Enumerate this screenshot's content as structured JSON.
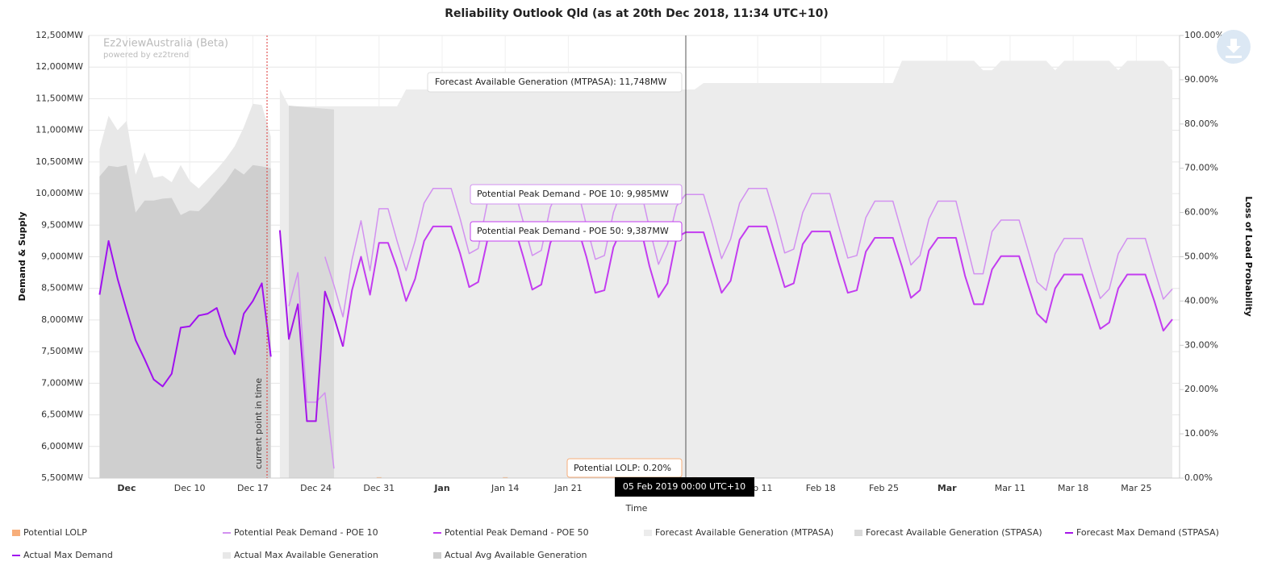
{
  "chart_data": {
    "type": "combo",
    "title": "Reliability Outlook Qld (as at 20th Dec 2018, 11:34 UTC+10)",
    "y_label": "Demand & Supply",
    "y2_label": "Loss of Load Probability",
    "x_label": "Time",
    "watermark": {
      "title": "Ez2viewAustralia (Beta)",
      "subtitle": "powered by ez2trend"
    },
    "annotations": [
      "current point in time"
    ],
    "tooltips": [
      "Forecast Available Generation (MTPASA): 11,748MW",
      "Potential Peak Demand - POE 10: 9,985MW",
      "Potential Peak Demand - POE 50: 9,387MW",
      "Potential LOLP: 0.20%",
      "05 Feb 2019 00:00 UTC+10"
    ],
    "grid": true,
    "legend_position": "bottom",
    "xlim": [
      -2.2,
      118.8
    ],
    "xticks": [
      {
        "value": 2,
        "label": "Dec"
      },
      {
        "value": 9,
        "label": "Dec 10"
      },
      {
        "value": 16,
        "label": "Dec 17"
      },
      {
        "value": 23,
        "label": "Dec 24"
      },
      {
        "value": 30,
        "label": "Dec 31"
      },
      {
        "value": 37,
        "label": "Jan"
      },
      {
        "value": 44,
        "label": "Jan 14"
      },
      {
        "value": 51,
        "label": "Jan 21"
      },
      {
        "value": 72,
        "label": "Feb 11"
      },
      {
        "value": 79,
        "label": "Feb 18"
      },
      {
        "value": 86,
        "label": "Feb 25"
      },
      {
        "value": 93,
        "label": "Mar"
      },
      {
        "value": 100,
        "label": "Mar 11"
      },
      {
        "value": 107,
        "label": "Mar 18"
      },
      {
        "value": 114,
        "label": "Mar 25"
      }
    ],
    "ylim": [
      5500,
      12500
    ],
    "yticks": [
      {
        "value": 5500,
        "label": "5,500MW"
      },
      {
        "value": 6000,
        "label": "6,000MW"
      },
      {
        "value": 6500,
        "label": "6,500MW"
      },
      {
        "value": 7000,
        "label": "7,000MW"
      },
      {
        "value": 7500,
        "label": "7,500MW"
      },
      {
        "value": 8000,
        "label": "8,000MW"
      },
      {
        "value": 8500,
        "label": "8,500MW"
      },
      {
        "value": 9000,
        "label": "9,000MW"
      },
      {
        "value": 9500,
        "label": "9,500MW"
      },
      {
        "value": 10000,
        "label": "10,000MW"
      },
      {
        "value": 10500,
        "label": "10,500MW"
      },
      {
        "value": 11000,
        "label": "11,000MW"
      },
      {
        "value": 11500,
        "label": "11,500MW"
      },
      {
        "value": 12000,
        "label": "12,000MW"
      },
      {
        "value": 12500,
        "label": "12,500MW"
      }
    ],
    "y2lim": [
      0,
      100
    ],
    "y2ticks": [
      {
        "value": 0,
        "label": "0.00%"
      },
      {
        "value": 10,
        "label": "10.00%"
      },
      {
        "value": 20,
        "label": "20.00%"
      },
      {
        "value": 30,
        "label": "30.00%"
      },
      {
        "value": 40,
        "label": "40.00%"
      },
      {
        "value": 50,
        "label": "50.00%"
      },
      {
        "value": 60,
        "label": "60.00%"
      },
      {
        "value": 70,
        "label": "70.00%"
      },
      {
        "value": 80,
        "label": "80.00%"
      },
      {
        "value": 90,
        "label": "90.00%"
      },
      {
        "value": 100,
        "label": "100.00%"
      }
    ],
    "series": [
      {
        "name": "Potential LOLP",
        "type": "column",
        "axis": "y2",
        "color": "#f7ae7a",
        "x": [
          30,
          44,
          65
        ],
        "values": [
          0.2,
          0.2,
          0.2
        ]
      },
      {
        "name": "Potential Peak Demand - POE 10",
        "type": "line",
        "color": "#d291f0",
        "x": [
          20,
          21,
          22,
          23,
          24,
          25,
          null,
          24,
          25,
          26,
          27,
          28,
          29,
          30,
          31,
          32,
          33,
          34,
          35,
          36,
          37,
          38,
          39,
          40,
          41,
          42,
          43,
          44,
          45,
          46,
          47,
          48,
          49,
          50,
          51,
          52,
          53,
          54,
          55,
          56,
          57,
          58,
          59,
          60,
          61,
          62,
          63,
          64,
          65,
          66,
          67,
          68,
          69,
          70,
          71,
          72,
          73,
          74,
          75,
          76,
          77,
          78,
          79,
          80,
          81,
          82,
          83,
          84,
          85,
          86,
          87,
          88,
          89,
          90,
          91,
          92,
          93,
          94,
          95,
          96,
          97,
          98,
          99,
          100,
          101,
          102,
          103,
          104,
          105,
          106,
          107,
          108,
          109,
          110,
          111,
          112,
          113,
          114,
          115,
          116,
          117,
          118
        ],
        "values": [
          8220,
          8750,
          6700,
          6700,
          6850,
          5650,
          null,
          9000,
          8550,
          8050,
          8950,
          9570,
          8780,
          9760,
          9760,
          9250,
          8780,
          9250,
          9850,
          10080,
          10080,
          10080,
          9600,
          9050,
          9130,
          9850,
          10080,
          10080,
          10080,
          9550,
          9020,
          9100,
          9780,
          10080,
          10080,
          10080,
          9500,
          8960,
          9020,
          9700,
          10080,
          10080,
          10080,
          9450,
          8880,
          9200,
          9800,
          9985,
          9985,
          9985,
          9500,
          8970,
          9280,
          9850,
          10080,
          10080,
          10080,
          9600,
          9060,
          9120,
          9700,
          10000,
          10000,
          10000,
          9480,
          8980,
          9020,
          9620,
          9880,
          9880,
          9880,
          9380,
          8870,
          9020,
          9600,
          9880,
          9880,
          9880,
          9300,
          8730,
          8730,
          9400,
          9580,
          9580,
          9580,
          9100,
          8600,
          8470,
          9050,
          9290,
          9290,
          9290,
          8800,
          8340,
          8490,
          9050,
          9290,
          9290,
          9290,
          8800,
          8330,
          8490
        ]
      },
      {
        "name": "Potential Peak Demand - POE 50",
        "type": "line",
        "color": "#c33cf0",
        "x": [
          26,
          27,
          28,
          29,
          30,
          31,
          32,
          33,
          34,
          35,
          36,
          37,
          38,
          39,
          40,
          41,
          42,
          43,
          44,
          45,
          46,
          47,
          48,
          49,
          50,
          51,
          52,
          53,
          54,
          55,
          56,
          57,
          58,
          59,
          60,
          61,
          62,
          63,
          64,
          65,
          66,
          67,
          68,
          69,
          70,
          71,
          72,
          73,
          74,
          75,
          76,
          77,
          78,
          79,
          80,
          81,
          82,
          83,
          84,
          85,
          86,
          87,
          88,
          89,
          90,
          91,
          92,
          93,
          94,
          95,
          96,
          97,
          98,
          99,
          100,
          101,
          102,
          103,
          104,
          105,
          106,
          107,
          108,
          109,
          110,
          111,
          112,
          113,
          114,
          115,
          116,
          117,
          118
        ],
        "values": [
          7580,
          8470,
          9000,
          8400,
          9220,
          9220,
          8820,
          8300,
          8650,
          9250,
          9480,
          9480,
          9480,
          9050,
          8520,
          8600,
          9250,
          9480,
          9480,
          9480,
          9000,
          8480,
          8560,
          9220,
          9480,
          9480,
          9480,
          9000,
          8430,
          8470,
          9150,
          9470,
          9470,
          9470,
          8850,
          8360,
          8580,
          9300,
          9387,
          9387,
          9387,
          8900,
          8430,
          8620,
          9270,
          9480,
          9480,
          9480,
          9000,
          8520,
          8580,
          9200,
          9400,
          9400,
          9400,
          8900,
          8430,
          8470,
          9080,
          9300,
          9300,
          9300,
          8850,
          8350,
          8470,
          9100,
          9300,
          9300,
          9300,
          8700,
          8250,
          8250,
          8800,
          9010,
          9010,
          9010,
          8550,
          8100,
          7960,
          8500,
          8720,
          8720,
          8720,
          8300,
          7860,
          7960,
          8500,
          8720,
          8720,
          8720,
          8300,
          7830,
          8010
        ]
      },
      {
        "name": "Forecast Available Generation (MTPASA)",
        "type": "area",
        "color": "#ececec",
        "x": [
          19,
          20,
          32,
          33,
          65,
          66,
          87,
          88,
          96,
          97,
          98,
          99,
          104,
          105,
          106,
          111,
          112,
          113,
          117,
          118
        ],
        "values": [
          11650,
          11380,
          11380,
          11645,
          11645,
          11748,
          11748,
          12100,
          12100,
          11950,
          11950,
          12100,
          12100,
          11950,
          12100,
          12100,
          11950,
          12100,
          12100,
          11950
        ]
      },
      {
        "name": "Forecast Available Generation (STPASA)",
        "type": "area",
        "color": "#d9d9d9",
        "x": [
          20,
          25
        ],
        "values": [
          11390,
          11330
        ]
      },
      {
        "name": "Forecast Max Demand (STPASA)",
        "type": "line",
        "color": "#a515e8",
        "x": [
          19,
          20,
          21,
          22,
          23,
          24,
          25,
          26
        ],
        "values": [
          9420,
          7700,
          8250,
          6400,
          6400,
          8450,
          8050,
          7580
        ]
      },
      {
        "name": "Actual Max Demand",
        "type": "line",
        "color": "#a010f0",
        "x": [
          -1,
          0,
          1,
          2,
          3,
          4,
          5,
          6,
          7,
          8,
          9,
          10,
          11,
          12,
          13,
          14,
          15,
          16,
          17,
          18
        ],
        "values": [
          8400,
          9250,
          8650,
          8150,
          7680,
          7380,
          7060,
          6950,
          7150,
          7880,
          7900,
          8070,
          8100,
          8190,
          7750,
          7460,
          8100,
          8300,
          8580,
          7420
        ]
      },
      {
        "name": "Actual Max Available Generation",
        "type": "area",
        "color": "#e8e8e8",
        "x": [
          -1,
          0,
          1,
          2,
          3,
          4,
          5,
          6,
          7,
          8,
          9,
          10,
          11,
          12,
          13,
          14,
          15,
          16,
          17,
          18
        ],
        "values": [
          10700,
          11230,
          11000,
          11150,
          10300,
          10650,
          10250,
          10280,
          10180,
          10450,
          10200,
          10080,
          10230,
          10380,
          10550,
          10750,
          11050,
          11420,
          11400,
          10900
        ]
      },
      {
        "name": "Actual Avg Available Generation",
        "type": "area",
        "color": "#cfcfcf",
        "x": [
          -1,
          0,
          1,
          2,
          3,
          4,
          5,
          6,
          7,
          8,
          9,
          10,
          11,
          12,
          13,
          14,
          15,
          16,
          17,
          18
        ],
        "values": [
          10270,
          10440,
          10420,
          10450,
          9700,
          9890,
          9890,
          9920,
          9930,
          9660,
          9730,
          9720,
          9860,
          10030,
          10190,
          10400,
          10300,
          10450,
          10430,
          10400
        ]
      }
    ]
  }
}
